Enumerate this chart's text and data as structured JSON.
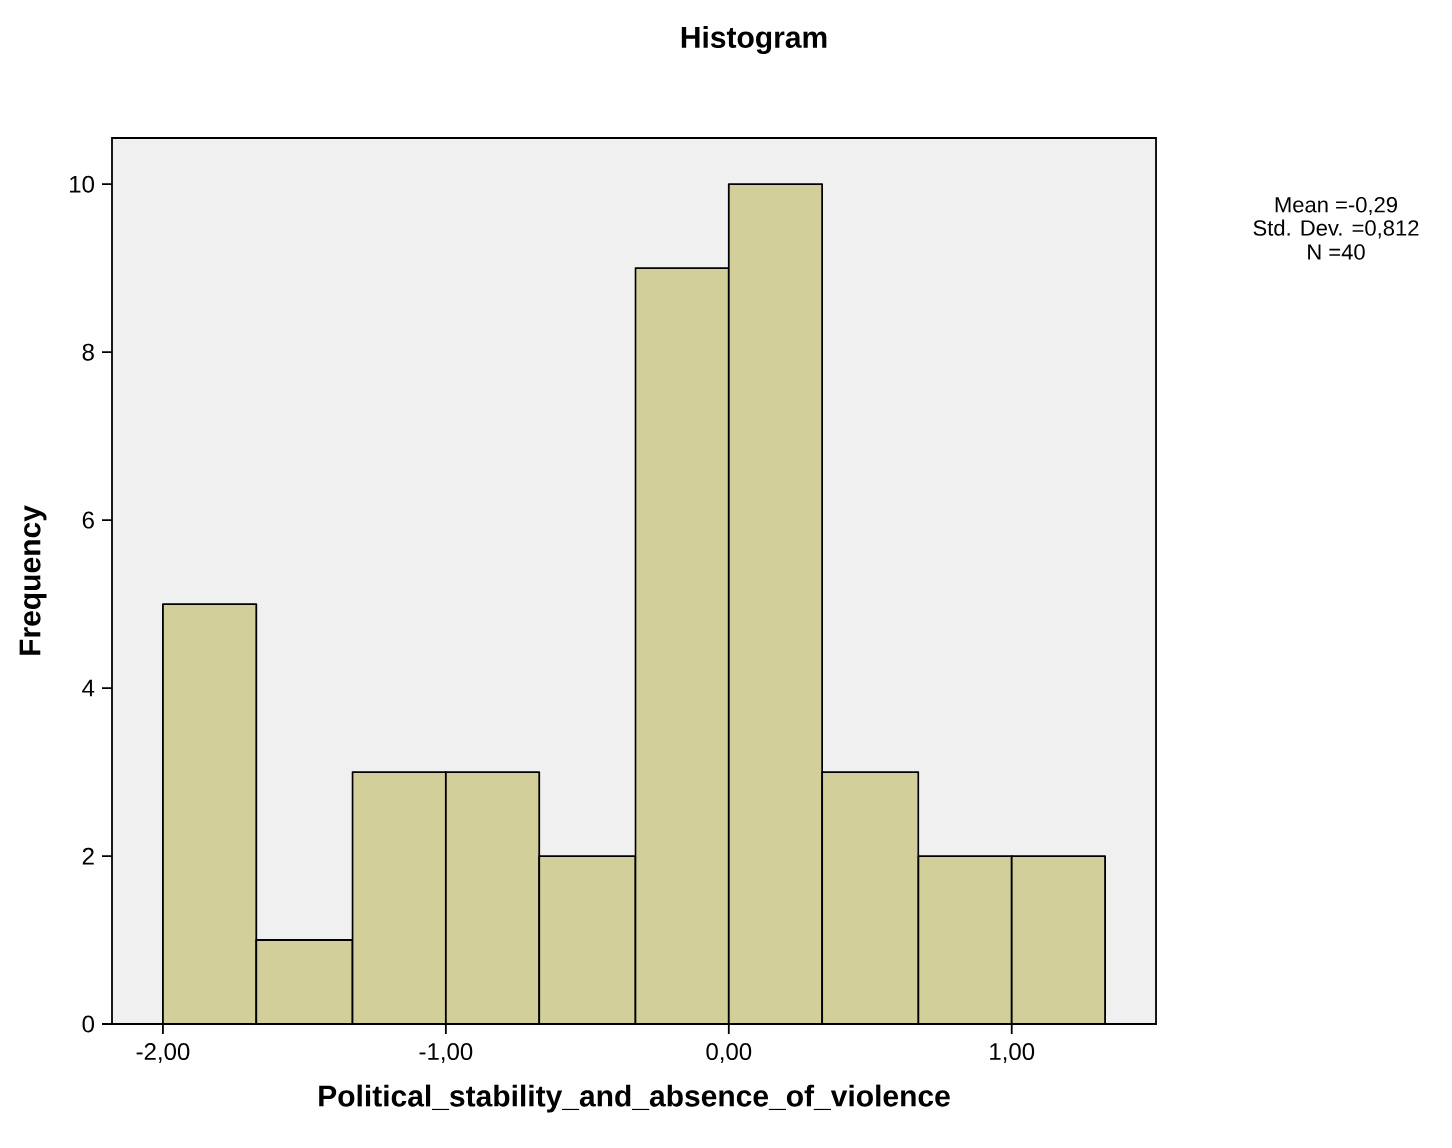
{
  "chart_data": {
    "type": "histogram",
    "title": "Histogram",
    "xlabel": "Political_stability_and_absence_of_violence",
    "ylabel": "Frequency",
    "bins": [
      -2,
      -1.67,
      -1.33,
      -1,
      -0.67,
      -0.33,
      0,
      0.33,
      0.67,
      1,
      1.33
    ],
    "values": [
      5,
      1,
      3,
      3,
      2,
      9,
      10,
      3,
      2,
      2
    ],
    "color": "#d3cf9a",
    "xlim": [
      -2.18,
      1.51
    ],
    "ylim": [
      0,
      10.55
    ],
    "xticks": [
      {
        "value": -2,
        "label": "-2,00"
      },
      {
        "value": -1,
        "label": "-1,00"
      },
      {
        "value": 0,
        "label": "0,00"
      },
      {
        "value": 1,
        "label": "1,00"
      }
    ],
    "yticks": [
      0,
      2,
      4,
      6,
      8,
      10
    ],
    "annotations": [
      "Mean =-0,29",
      "Std. Dev. =0,812",
      "N =40"
    ]
  }
}
